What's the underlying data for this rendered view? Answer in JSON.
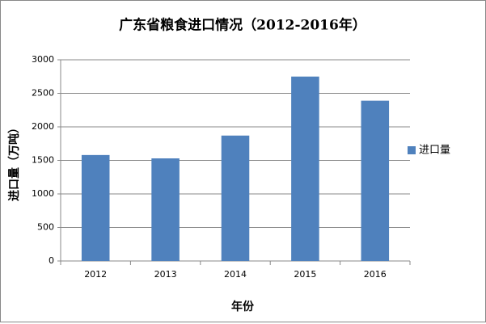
{
  "chart_data": {
    "type": "bar",
    "title": "广东省粮食进口情况（2012-2016年）",
    "x_label": "年份",
    "y_label": "进口量（万吨）",
    "categories": [
      "2012",
      "2013",
      "2014",
      "2015",
      "2016"
    ],
    "series": [
      {
        "name": "进口量",
        "color": "#4f81bd",
        "values": [
          1580,
          1530,
          1870,
          2750,
          2390
        ]
      }
    ],
    "ylim": [
      0,
      3000
    ],
    "yticks": [
      0,
      500,
      1000,
      1500,
      2000,
      2500,
      3000
    ],
    "grid": true,
    "legend": "right"
  }
}
